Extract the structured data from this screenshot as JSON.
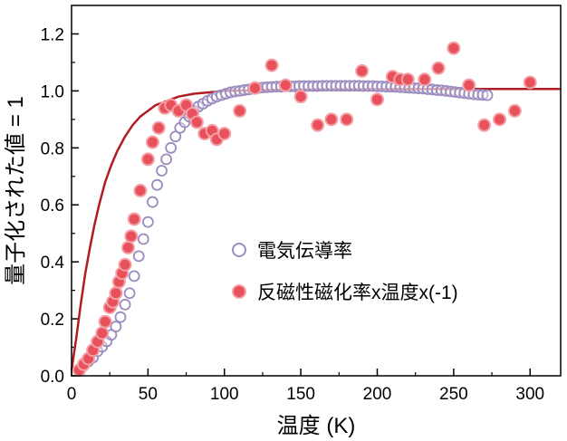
{
  "chart_data": {
    "type": "scatter",
    "xlabel": "温度 (K)",
    "ylabel": "量子化された値 = 1",
    "xlim": [
      0,
      320
    ],
    "ylim": [
      0,
      1.3
    ],
    "xticks": [
      0,
      50,
      100,
      150,
      200,
      250,
      300
    ],
    "yticks": [
      0.0,
      0.2,
      0.4,
      0.6,
      0.8,
      1.0,
      1.2
    ],
    "xtick_labels": [
      "0",
      "50",
      "100",
      "150",
      "200",
      "250",
      "300"
    ],
    "ytick_labels": [
      "0.0",
      "0.2",
      "0.4",
      "0.6",
      "0.8",
      "1.0",
      "1.2"
    ],
    "grid": false,
    "legend_position": "center-right",
    "series": [
      {
        "name": "電気伝導率",
        "marker": "open-circle",
        "color": "#9b8bbf",
        "x": [
          5,
          8,
          11,
          14,
          17,
          20,
          23,
          26,
          29,
          32,
          35,
          38,
          41,
          44,
          47,
          50,
          53,
          56,
          59,
          62,
          65,
          68,
          71,
          74,
          77,
          80,
          83,
          86,
          89,
          92,
          95,
          98,
          101,
          104,
          107,
          110,
          113,
          116,
          119,
          122,
          125,
          128,
          131,
          134,
          137,
          140,
          143,
          146,
          149,
          152,
          155,
          158,
          161,
          164,
          167,
          170,
          173,
          176,
          179,
          182,
          185,
          188,
          191,
          194,
          197,
          200,
          203,
          206,
          209,
          212,
          215,
          218,
          221,
          224,
          227,
          230,
          233,
          236,
          239,
          242,
          245,
          248,
          251,
          254,
          257,
          260,
          263,
          266,
          269,
          272
        ],
        "y": [
          0.02,
          0.035,
          0.05,
          0.064,
          0.086,
          0.102,
          0.121,
          0.144,
          0.173,
          0.206,
          0.25,
          0.29,
          0.35,
          0.42,
          0.48,
          0.54,
          0.61,
          0.67,
          0.72,
          0.76,
          0.8,
          0.84,
          0.87,
          0.89,
          0.91,
          0.93,
          0.945,
          0.955,
          0.965,
          0.973,
          0.98,
          0.985,
          0.99,
          0.995,
          0.998,
          1.0,
          1.003,
          1.005,
          1.008,
          1.01,
          1.012,
          1.013,
          1.014,
          1.015,
          1.015,
          1.016,
          1.016,
          1.016,
          1.017,
          1.017,
          1.017,
          1.017,
          1.017,
          1.018,
          1.018,
          1.018,
          1.018,
          1.018,
          1.018,
          1.018,
          1.018,
          1.018,
          1.017,
          1.017,
          1.017,
          1.016,
          1.016,
          1.015,
          1.015,
          1.014,
          1.013,
          1.012,
          1.011,
          1.01,
          1.009,
          1.008,
          1.006,
          1.005,
          1.003,
          1.002,
          1.0,
          0.998,
          0.996,
          0.994,
          0.992,
          0.99,
          0.988,
          0.987,
          0.986,
          0.985
        ]
      },
      {
        "name": "反磁性磁化率x温度x(-1)",
        "marker": "filled-circle",
        "color": "#e8505b",
        "x": [
          5,
          8,
          11,
          14,
          17,
          20,
          22,
          25,
          27,
          29,
          31,
          33,
          35,
          37,
          39,
          41,
          45,
          50,
          53,
          57,
          61,
          65,
          70,
          75,
          79,
          82,
          87,
          92,
          95,
          100,
          110,
          120,
          131,
          140,
          150,
          161,
          170,
          180,
          190,
          200,
          210,
          215,
          220,
          231,
          240,
          250,
          260,
          270,
          280,
          290,
          300
        ],
        "y": [
          0.02,
          0.04,
          0.06,
          0.09,
          0.12,
          0.15,
          0.19,
          0.24,
          0.26,
          0.29,
          0.33,
          0.36,
          0.39,
          0.45,
          0.49,
          0.55,
          0.65,
          0.76,
          0.82,
          0.87,
          0.94,
          0.95,
          0.93,
          0.95,
          0.92,
          0.89,
          0.85,
          0.86,
          0.83,
          0.85,
          0.93,
          1.01,
          1.09,
          1.02,
          0.98,
          0.88,
          0.9,
          0.9,
          1.07,
          0.97,
          1.05,
          1.04,
          1.04,
          1.04,
          1.08,
          1.15,
          1.02,
          0.88,
          0.9,
          0.93,
          1.03
        ]
      },
      {
        "marker": "line",
        "color": "#b01c22",
        "x": [
          0,
          3,
          6,
          9,
          12,
          15,
          18,
          22,
          26,
          30,
          35,
          40,
          45,
          50,
          55,
          60,
          65,
          70,
          80,
          90,
          100,
          120,
          140,
          160,
          200,
          250,
          300,
          320
        ],
        "y": [
          0.02,
          0.13,
          0.25,
          0.36,
          0.45,
          0.53,
          0.6,
          0.68,
          0.74,
          0.79,
          0.84,
          0.88,
          0.91,
          0.93,
          0.95,
          0.96,
          0.97,
          0.98,
          0.99,
          0.995,
          1.0,
          1.002,
          1.004,
          1.005,
          1.006,
          1.007,
          1.007,
          1.007
        ]
      }
    ]
  }
}
